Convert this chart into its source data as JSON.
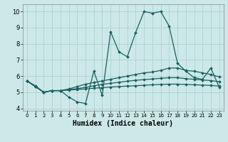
{
  "xlabel": "Humidex (Indice chaleur)",
  "bg_color": "#cce8e8",
  "grid_color": "#aacece",
  "line_color": "#1a6060",
  "xlim": [
    -0.5,
    23.5
  ],
  "ylim": [
    3.85,
    10.45
  ],
  "yticks": [
    4,
    5,
    6,
    7,
    8,
    9,
    10
  ],
  "xticks": [
    0,
    1,
    2,
    3,
    4,
    5,
    6,
    7,
    8,
    9,
    10,
    11,
    12,
    13,
    14,
    15,
    16,
    17,
    18,
    19,
    20,
    21,
    22,
    23
  ],
  "line1_x": [
    0,
    1,
    2,
    3,
    4,
    5,
    6,
    7,
    8,
    9,
    10,
    11,
    12,
    13,
    14,
    15,
    16,
    17,
    18,
    19,
    20,
    21,
    22,
    23
  ],
  "line1_y": [
    5.7,
    5.4,
    5.0,
    5.1,
    5.1,
    4.7,
    4.4,
    4.3,
    6.3,
    4.8,
    8.75,
    7.5,
    7.2,
    8.7,
    10.0,
    9.9,
    10.0,
    9.1,
    6.8,
    6.3,
    5.9,
    5.8,
    6.5,
    5.3
  ],
  "line2_x": [
    0,
    1,
    2,
    3,
    4,
    5,
    6,
    7,
    8,
    9,
    10,
    11,
    12,
    13,
    14,
    15,
    16,
    17,
    18,
    19,
    20,
    21,
    22,
    23
  ],
  "line2_y": [
    5.7,
    5.35,
    5.0,
    5.1,
    5.1,
    5.2,
    5.35,
    5.5,
    5.6,
    5.7,
    5.8,
    5.9,
    6.0,
    6.1,
    6.2,
    6.25,
    6.35,
    6.5,
    6.5,
    6.35,
    6.3,
    6.2,
    6.1,
    5.95
  ],
  "line3_x": [
    0,
    1,
    2,
    3,
    4,
    5,
    6,
    7,
    8,
    9,
    10,
    11,
    12,
    13,
    14,
    15,
    16,
    17,
    18,
    19,
    20,
    21,
    22,
    23
  ],
  "line3_y": [
    5.7,
    5.35,
    5.0,
    5.1,
    5.1,
    5.13,
    5.17,
    5.2,
    5.25,
    5.28,
    5.32,
    5.35,
    5.38,
    5.4,
    5.43,
    5.46,
    5.48,
    5.5,
    5.5,
    5.48,
    5.46,
    5.44,
    5.42,
    5.38
  ],
  "line4_x": [
    0,
    1,
    2,
    3,
    4,
    5,
    6,
    7,
    8,
    9,
    10,
    11,
    12,
    13,
    14,
    15,
    16,
    17,
    18,
    19,
    20,
    21,
    22,
    23
  ],
  "line4_y": [
    5.7,
    5.35,
    5.0,
    5.1,
    5.1,
    5.16,
    5.22,
    5.3,
    5.4,
    5.48,
    5.55,
    5.62,
    5.68,
    5.74,
    5.78,
    5.82,
    5.86,
    5.9,
    5.9,
    5.84,
    5.8,
    5.76,
    5.72,
    5.65
  ]
}
